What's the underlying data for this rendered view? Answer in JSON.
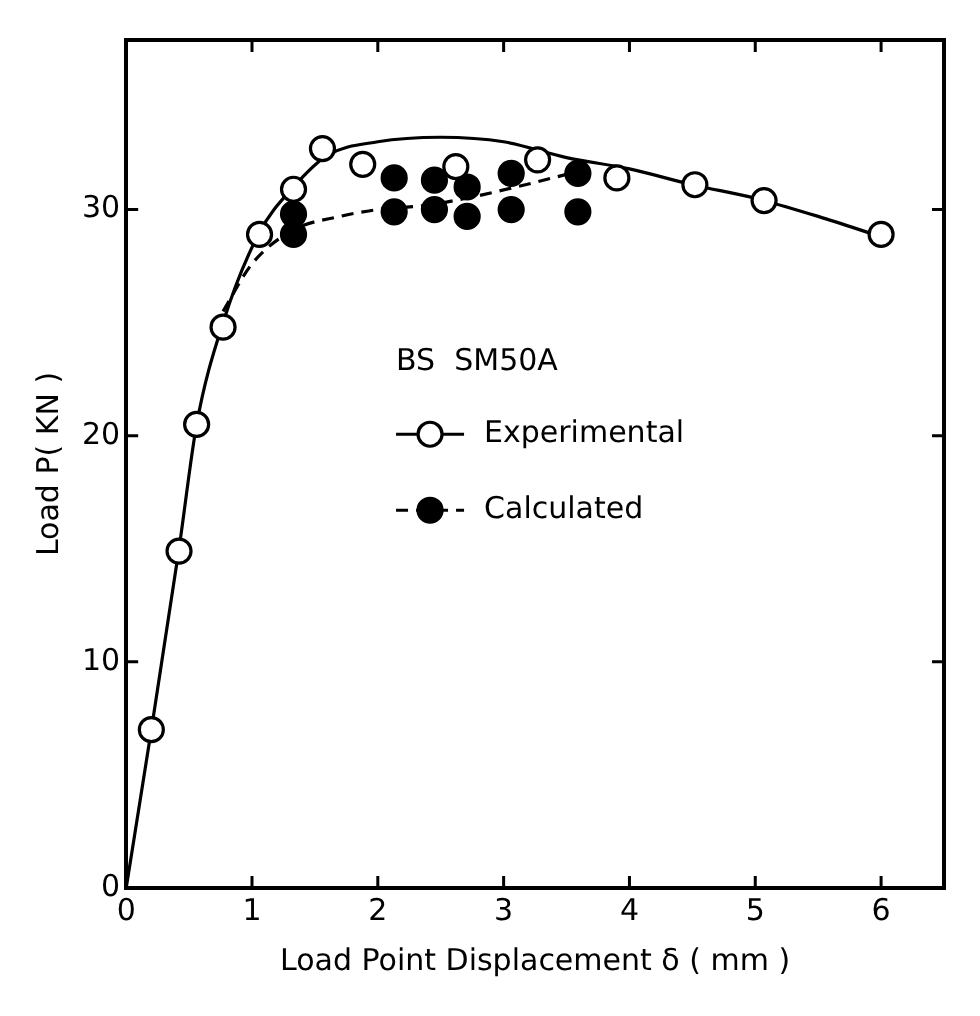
{
  "chart_data": {
    "type": "scatter",
    "xlabel": "Load Point Displacement δ ( mm )",
    "ylabel": "Load P( KN )",
    "legend_title": "BS  SM50A",
    "legend": "center",
    "grid": false,
    "xlim": [
      0,
      6.5
    ],
    "xticks": [
      0,
      1,
      2,
      3,
      4,
      5,
      6
    ],
    "ylim": [
      0,
      37.5
    ],
    "yticks": [
      0,
      10,
      20,
      30
    ],
    "series": [
      {
        "name": "Experimental",
        "marker": "circle",
        "line_style": "solid",
        "color": "#000000",
        "x": [
          0.2,
          0.42,
          0.56,
          0.77,
          1.06,
          1.33,
          1.56,
          1.88,
          2.62,
          3.27,
          3.9,
          4.52,
          5.07,
          6.0
        ],
        "values": [
          7.0,
          14.9,
          20.5,
          24.8,
          28.9,
          30.9,
          32.7,
          32.0,
          31.9,
          32.2,
          31.4,
          31.1,
          30.4,
          28.9
        ]
      },
      {
        "name": "Calculated",
        "marker": "circle",
        "line_style": "dashed",
        "color": "#000000",
        "x": [
          1.33,
          1.33,
          2.13,
          2.13,
          2.45,
          2.45,
          2.71,
          2.71,
          3.06,
          3.06,
          3.59,
          3.59
        ],
        "values": [
          29.8,
          28.9,
          31.4,
          29.9,
          31.3,
          30.0,
          31.0,
          29.7,
          31.6,
          30.0,
          31.6,
          29.9
        ]
      },
      {
        "type": "line",
        "line_style": "solid",
        "marker": "none",
        "color": "#000000",
        "x": [
          0,
          0.2,
          0.42,
          0.56,
          0.77,
          1.06,
          1.33,
          1.6,
          2.0,
          2.5,
          3.0,
          3.5,
          4.0,
          4.5,
          5.0,
          5.5,
          6.0
        ],
        "values": [
          0,
          7.0,
          15.0,
          20.5,
          25.0,
          29.0,
          31.0,
          32.4,
          33.0,
          33.2,
          33.0,
          32.3,
          31.8,
          31.1,
          30.5,
          29.7,
          28.8
        ]
      },
      {
        "type": "line",
        "line_style": "dashed",
        "marker": "none",
        "color": "#000000",
        "x": [
          0.77,
          1.0,
          1.33,
          1.7,
          2.0,
          2.4,
          2.7,
          3.1,
          3.6
        ],
        "values": [
          25.5,
          27.6,
          29.1,
          29.7,
          30.0,
          30.2,
          30.5,
          31.0,
          31.7
        ]
      }
    ]
  }
}
